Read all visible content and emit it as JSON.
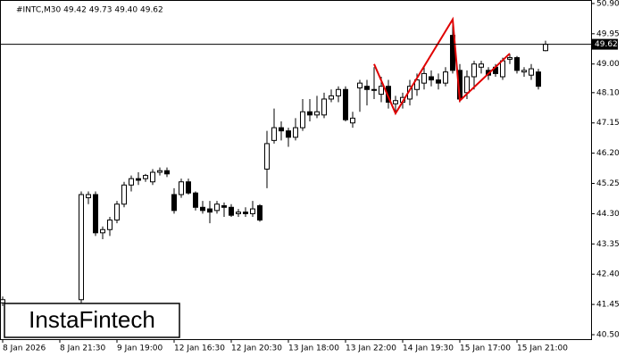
{
  "chart_data": {
    "type": "candlestick",
    "title": "#INTC,M30  49.42 49.73 49.40 49.62",
    "logo": "InstaFintech",
    "x": [
      0,
      11,
      12,
      13,
      14,
      15,
      16,
      17,
      18,
      19,
      20,
      21,
      22,
      23,
      24,
      25,
      26,
      27,
      28,
      29,
      30,
      31,
      32,
      33,
      34,
      35,
      36,
      37,
      38,
      39,
      40,
      41,
      42,
      43,
      44,
      45,
      46,
      47,
      48,
      49,
      50,
      51,
      52,
      53,
      54,
      55,
      56,
      57,
      58,
      59,
      60,
      61,
      62,
      63,
      64,
      65,
      66,
      67,
      68,
      69,
      70,
      71,
      72,
      73,
      74,
      75,
      76
    ],
    "open": [
      41.5,
      41.6,
      44.8,
      44.9,
      43.7,
      43.8,
      44.1,
      44.6,
      45.2,
      45.4,
      45.4,
      45.3,
      45.6,
      45.65,
      44.9,
      44.9,
      45.3,
      44.95,
      44.5,
      44.45,
      44.4,
      44.55,
      44.5,
      44.3,
      44.35,
      44.3,
      44.55,
      45.7,
      46.6,
      47.0,
      46.9,
      46.7,
      47.0,
      47.5,
      47.4,
      47.4,
      47.9,
      48.0,
      48.2,
      47.15,
      48.25,
      48.3,
      48.2,
      48.05,
      48.3,
      47.75,
      47.8,
      47.9,
      48.2,
      48.4,
      48.6,
      48.5,
      48.4,
      49.9,
      48.8,
      48.1,
      48.6,
      48.9,
      48.8,
      48.9,
      48.6,
      49.15,
      49.2,
      48.75,
      48.65,
      48.75,
      49.42
    ],
    "high": [
      41.7,
      45.0,
      45.0,
      45.0,
      43.9,
      44.2,
      44.7,
      45.3,
      45.5,
      45.6,
      45.55,
      45.7,
      45.75,
      45.75,
      45.1,
      45.4,
      45.4,
      45.0,
      44.7,
      44.7,
      44.7,
      44.65,
      44.6,
      44.45,
      44.5,
      44.7,
      44.6,
      46.9,
      47.6,
      47.2,
      47.0,
      47.3,
      47.9,
      47.9,
      48.0,
      48.1,
      48.2,
      48.3,
      48.3,
      47.5,
      48.5,
      48.5,
      48.9,
      48.6,
      48.5,
      48.0,
      48.1,
      48.5,
      48.7,
      48.9,
      48.8,
      48.7,
      48.9,
      50.35,
      49.0,
      48.8,
      49.1,
      49.1,
      48.9,
      49.0,
      49.2,
      49.3,
      49.25,
      48.9,
      49.0,
      48.85,
      49.73
    ],
    "low": [
      41.4,
      41.5,
      44.6,
      43.6,
      43.5,
      43.6,
      44.0,
      44.5,
      45.0,
      45.2,
      45.3,
      45.2,
      45.5,
      45.45,
      44.3,
      44.8,
      44.9,
      44.4,
      44.3,
      44.0,
      44.3,
      44.2,
      44.2,
      44.2,
      44.2,
      44.2,
      44.05,
      45.1,
      46.5,
      46.6,
      46.4,
      46.6,
      46.9,
      47.2,
      47.3,
      47.3,
      47.8,
      47.8,
      47.2,
      47.0,
      47.5,
      47.7,
      47.9,
      47.8,
      47.6,
      47.45,
      47.6,
      47.7,
      48.0,
      48.2,
      48.3,
      48.2,
      48.3,
      48.7,
      47.8,
      47.9,
      48.2,
      48.7,
      48.5,
      48.6,
      48.5,
      49.0,
      48.7,
      48.6,
      48.5,
      48.2,
      49.4
    ],
    "close": [
      41.6,
      44.9,
      44.9,
      43.7,
      43.8,
      44.1,
      44.6,
      45.2,
      45.4,
      45.35,
      45.5,
      45.6,
      45.65,
      45.55,
      44.4,
      45.3,
      44.95,
      44.5,
      44.4,
      44.35,
      44.6,
      44.5,
      44.25,
      44.35,
      44.3,
      44.45,
      44.1,
      46.5,
      47.0,
      46.9,
      46.7,
      47.0,
      47.5,
      47.4,
      47.5,
      47.9,
      48.0,
      48.2,
      47.25,
      47.3,
      48.4,
      48.2,
      48.2,
      48.3,
      47.8,
      47.85,
      47.95,
      48.3,
      48.5,
      48.7,
      48.5,
      48.4,
      48.75,
      48.8,
      47.9,
      48.6,
      49.0,
      49.0,
      48.65,
      48.7,
      49.1,
      49.2,
      48.8,
      48.8,
      48.85,
      48.3,
      49.62
    ],
    "up_color": "#ffffff",
    "down_color": "#000000",
    "pattern": {
      "x": [
        52,
        55,
        63,
        64,
        71
      ],
      "y": [
        49.0,
        47.45,
        50.4,
        47.85,
        49.33
      ],
      "color": "#e00000"
    },
    "last_price": 49.62,
    "xlim": [
      -0.375,
      82.375
    ],
    "xticks": [
      {
        "value": 0,
        "label": "8 Jan 2026"
      },
      {
        "value": 8,
        "label": "8 Jan 21:30"
      },
      {
        "value": 16,
        "label": "9 Jan 19:00"
      },
      {
        "value": 24,
        "label": "12 Jan 16:30"
      },
      {
        "value": 32,
        "label": "12 Jan 20:30"
      },
      {
        "value": 40,
        "label": "13 Jan 18:00"
      },
      {
        "value": 48,
        "label": "13 Jan 22:00"
      },
      {
        "value": 56,
        "label": "14 Jan 19:30"
      },
      {
        "value": 64,
        "label": "15 Jan 17:00"
      },
      {
        "value": 72,
        "label": "15 Jan 21:00"
      }
    ],
    "ylim": [
      40.36,
      51.01
    ],
    "yticks": [
      {
        "value": 50.9,
        "label": "50.90"
      },
      49.95,
      {
        "value": 49.0,
        "label": "49.00"
      },
      {
        "value": 48.1,
        "label": "48.10"
      },
      47.15,
      {
        "value": 46.2,
        "label": "46.20"
      },
      45.25,
      {
        "value": 44.3,
        "label": "44.30"
      },
      {
        "value": 43.35,
        "label": "43.35"
      },
      {
        "value": 42.4,
        "label": "42.40"
      },
      41.45,
      {
        "value": 40.5,
        "label": "40.50"
      }
    ]
  }
}
